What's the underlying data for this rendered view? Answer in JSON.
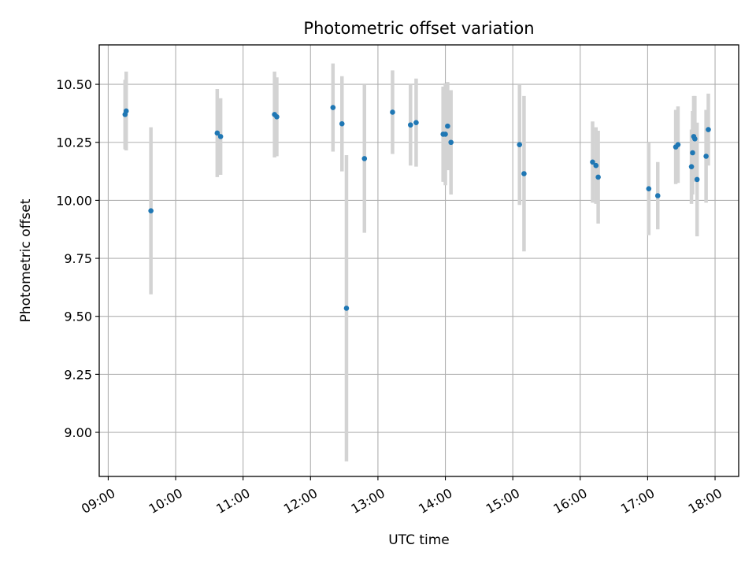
{
  "chart_data": {
    "type": "scatter",
    "title": "Photometric offset variation",
    "xlabel": "UTC time",
    "ylabel": "Photometric offset",
    "grid": true,
    "xlim": [
      "08:52",
      "18:21"
    ],
    "ylim": [
      8.81,
      10.67
    ],
    "x_ticks": [
      "09:00",
      "10:00",
      "11:00",
      "12:00",
      "13:00",
      "14:00",
      "15:00",
      "16:00",
      "17:00",
      "18:00"
    ],
    "y_ticks": [
      "9.00",
      "9.25",
      "9.50",
      "9.75",
      "10.00",
      "10.25",
      "10.50"
    ],
    "colors": {
      "points": "#1f77b4",
      "errorbars": "#d3d3d3",
      "grid": "#b0b0b0"
    },
    "series": [
      {
        "points": [
          {
            "x": "09:15",
            "y": 10.37,
            "err": 0.15
          },
          {
            "x": "09:16",
            "y": 10.385,
            "err": 0.17
          },
          {
            "x": "09:38",
            "y": 9.955,
            "err": 0.36
          },
          {
            "x": "10:37",
            "y": 10.29,
            "err": 0.19
          },
          {
            "x": "10:40",
            "y": 10.275,
            "err": 0.165
          },
          {
            "x": "11:28",
            "y": 10.37,
            "err": 0.185
          },
          {
            "x": "11:30",
            "y": 10.36,
            "err": 0.17
          },
          {
            "x": "12:20",
            "y": 10.4,
            "err": 0.19
          },
          {
            "x": "12:28",
            "y": 10.33,
            "err": 0.205
          },
          {
            "x": "12:32",
            "y": 9.535,
            "err": 0.66
          },
          {
            "x": "12:48",
            "y": 10.18,
            "err": 0.32
          },
          {
            "x": "13:13",
            "y": 10.38,
            "err": 0.18
          },
          {
            "x": "13:29",
            "y": 10.325,
            "err": 0.175
          },
          {
            "x": "13:34",
            "y": 10.335,
            "err": 0.19
          },
          {
            "x": "13:58",
            "y": 10.285,
            "err": 0.205
          },
          {
            "x": "14:00",
            "y": 10.285,
            "err": 0.22
          },
          {
            "x": "14:02",
            "y": 10.32,
            "err": 0.19
          },
          {
            "x": "14:05",
            "y": 10.25,
            "err": 0.225
          },
          {
            "x": "15:06",
            "y": 10.24,
            "err": 0.26
          },
          {
            "x": "15:10",
            "y": 10.115,
            "err": 0.335
          },
          {
            "x": "16:11",
            "y": 10.165,
            "err": 0.175
          },
          {
            "x": "16:14",
            "y": 10.15,
            "err": 0.165
          },
          {
            "x": "16:16",
            "y": 10.1,
            "err": 0.2
          },
          {
            "x": "17:01",
            "y": 10.05,
            "err": 0.2
          },
          {
            "x": "17:09",
            "y": 10.02,
            "err": 0.145
          },
          {
            "x": "17:25",
            "y": 10.23,
            "err": 0.16
          },
          {
            "x": "17:27",
            "y": 10.24,
            "err": 0.165
          },
          {
            "x": "17:39",
            "y": 10.145,
            "err": 0.16
          },
          {
            "x": "17:40",
            "y": 10.205,
            "err": 0.18
          },
          {
            "x": "17:41",
            "y": 10.275,
            "err": 0.175
          },
          {
            "x": "17:42",
            "y": 10.265,
            "err": 0.185
          },
          {
            "x": "17:44",
            "y": 10.09,
            "err": 0.245
          },
          {
            "x": "17:52",
            "y": 10.19,
            "err": 0.2
          },
          {
            "x": "17:54",
            "y": 10.305,
            "err": 0.155
          }
        ]
      }
    ]
  }
}
